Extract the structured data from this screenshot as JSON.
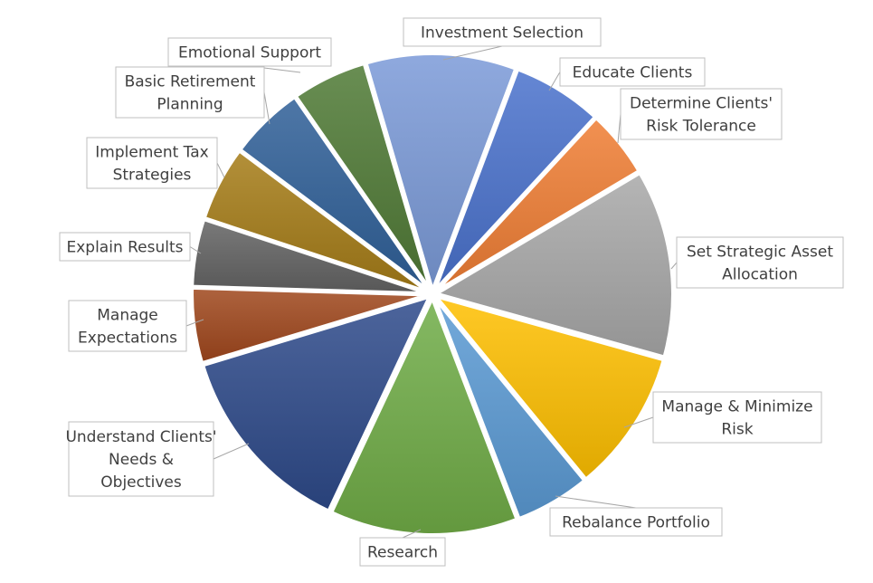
{
  "chart_data": {
    "type": "pie",
    "title": "",
    "slices": [
      {
        "label": "Investment Selection",
        "value": 10,
        "color": "#7b9ad8"
      },
      {
        "label": "Educate Clients",
        "value": 6,
        "color": "#4a72cc"
      },
      {
        "label": "Determine Clients' Risk Tolerance",
        "value": 4.5,
        "color": "#f07e34"
      },
      {
        "label": "Set Strategic Asset Allocation",
        "value": 12.5,
        "color": "#a8a8a8"
      },
      {
        "label": "Manage & Minimize Risk",
        "value": 9.5,
        "color": "#ffc000"
      },
      {
        "label": "Rebalance Portfolio",
        "value": 5,
        "color": "#5b9bd5"
      },
      {
        "label": "Research",
        "value": 12.5,
        "color": "#70ad47"
      },
      {
        "label": "Understand Clients' Needs & Objectives",
        "value": 13,
        "color": "#2e4a8a"
      },
      {
        "label": "Manage Expectations",
        "value": 5,
        "color": "#a0471c"
      },
      {
        "label": "Explain Results",
        "value": 4.5,
        "color": "#636363"
      },
      {
        "label": "Implement Tax Strategies",
        "value": 5,
        "color": "#a57c17"
      },
      {
        "label": "Basic Retirement Planning",
        "value": 5,
        "color": "#2f5f98"
      },
      {
        "label": "Emotional Support",
        "value": 5,
        "color": "#4f7a35"
      }
    ]
  }
}
